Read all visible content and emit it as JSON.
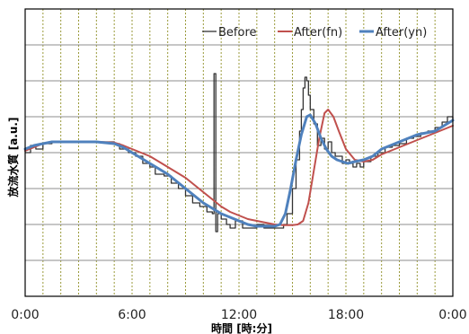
{
  "chart_data": {
    "type": "line",
    "title": "",
    "xlabel": "時間 [時:分]",
    "ylabel": "放流水質 [a.u.]",
    "x_tick_labels": [
      "0:00",
      "6:00",
      "12:00",
      "18:00",
      "0:00"
    ],
    "xlim": [
      0,
      24
    ],
    "ylim": [
      0,
      8
    ],
    "x_minor_grid_step_hours": 1,
    "y_grid_step": 1,
    "grid": true,
    "legend_position": "top-right",
    "series": [
      {
        "name": "Before",
        "color": "#333333",
        "width": 1.3,
        "step": true,
        "x": [
          0,
          0.3,
          0.6,
          1.0,
          1.5,
          2.0,
          3.0,
          4.0,
          4.5,
          5.0,
          5.3,
          5.8,
          6.2,
          6.6,
          7.0,
          7.3,
          7.8,
          8.2,
          8.6,
          9.0,
          9.4,
          9.8,
          10.2,
          10.5,
          10.6,
          10.7,
          10.8,
          11.0,
          11.3,
          11.5,
          11.8,
          12.2,
          12.6,
          13.0,
          13.4,
          13.8,
          14.2,
          14.5,
          14.7,
          15.0,
          15.2,
          15.4,
          15.5,
          15.6,
          15.7,
          15.8,
          15.9,
          16.0,
          16.2,
          16.4,
          16.6,
          16.8,
          17.0,
          17.2,
          17.4,
          17.6,
          17.8,
          18.0,
          18.2,
          18.4,
          18.6,
          18.8,
          19.0,
          19.4,
          19.8,
          20.2,
          20.6,
          21.0,
          21.4,
          21.8,
          22.2,
          22.6,
          23.0,
          23.4,
          23.7,
          24.0
        ],
        "y": [
          4.0,
          4.2,
          4.1,
          4.25,
          4.3,
          4.3,
          4.3,
          4.3,
          4.3,
          4.25,
          4.1,
          4.0,
          3.9,
          3.7,
          3.6,
          3.4,
          3.35,
          3.15,
          3.0,
          2.8,
          2.6,
          2.5,
          2.35,
          2.3,
          6.2,
          1.8,
          2.3,
          2.15,
          2.0,
          1.9,
          2.1,
          1.9,
          1.9,
          2.0,
          1.9,
          1.9,
          1.9,
          2.0,
          2.3,
          3.0,
          3.8,
          4.6,
          5.2,
          5.8,
          6.1,
          6.0,
          5.6,
          5.2,
          4.8,
          4.2,
          4.4,
          4.1,
          4.3,
          4.0,
          3.9,
          3.9,
          3.7,
          3.8,
          3.7,
          3.6,
          3.7,
          3.6,
          3.75,
          3.9,
          4.0,
          4.15,
          4.2,
          4.25,
          4.4,
          4.45,
          4.55,
          4.6,
          4.7,
          4.85,
          5.0,
          4.9
        ]
      },
      {
        "name": "After(fn)",
        "color": "#c0504d",
        "width": 2,
        "x": [
          0,
          0.5,
          1.0,
          1.5,
          2.0,
          3.0,
          4.0,
          5.0,
          5.5,
          6.0,
          6.5,
          7.0,
          7.5,
          8.0,
          8.5,
          9.0,
          9.5,
          10.0,
          10.5,
          11.0,
          11.5,
          12.0,
          12.5,
          13.0,
          13.5,
          14.0,
          14.5,
          15.0,
          15.3,
          15.6,
          15.9,
          16.2,
          16.5,
          16.8,
          17.0,
          17.3,
          17.6,
          18.0,
          18.5,
          19.0,
          19.5,
          20.0,
          20.5,
          21.0,
          21.5,
          22.0,
          22.5,
          23.0,
          23.5,
          24.0
        ],
        "y": [
          4.05,
          4.15,
          4.25,
          4.3,
          4.3,
          4.3,
          4.3,
          4.28,
          4.2,
          4.1,
          4.0,
          3.9,
          3.75,
          3.6,
          3.45,
          3.3,
          3.1,
          2.9,
          2.7,
          2.5,
          2.35,
          2.25,
          2.15,
          2.1,
          2.05,
          2.0,
          1.98,
          1.98,
          2.0,
          2.1,
          2.6,
          3.5,
          4.4,
          5.1,
          5.2,
          5.0,
          4.6,
          4.1,
          3.8,
          3.75,
          3.8,
          3.95,
          4.05,
          4.15,
          4.25,
          4.35,
          4.45,
          4.55,
          4.65,
          4.75
        ]
      },
      {
        "name": "After(yn)",
        "color": "#4f81bd",
        "width": 3,
        "x": [
          0,
          0.5,
          1.0,
          1.5,
          2.0,
          3.0,
          4.0,
          5.0,
          5.5,
          6.0,
          6.5,
          7.0,
          7.5,
          8.0,
          8.5,
          9.0,
          9.5,
          10.0,
          10.5,
          11.0,
          11.5,
          12.0,
          12.5,
          13.0,
          13.5,
          14.0,
          14.3,
          14.6,
          14.9,
          15.2,
          15.5,
          15.8,
          16.0,
          16.3,
          16.6,
          16.9,
          17.2,
          17.5,
          17.8,
          18.1,
          18.5,
          19.0,
          19.5,
          20.0,
          20.5,
          21.0,
          21.5,
          22.0,
          22.5,
          23.0,
          23.5,
          24.0
        ],
        "y": [
          4.1,
          4.2,
          4.25,
          4.3,
          4.3,
          4.3,
          4.3,
          4.25,
          4.15,
          4.0,
          3.85,
          3.7,
          3.55,
          3.4,
          3.2,
          3.0,
          2.8,
          2.6,
          2.45,
          2.3,
          2.2,
          2.1,
          2.0,
          1.95,
          1.95,
          1.95,
          2.0,
          2.3,
          3.0,
          3.8,
          4.5,
          5.0,
          5.05,
          4.8,
          4.4,
          4.1,
          3.9,
          3.8,
          3.75,
          3.7,
          3.75,
          3.8,
          3.9,
          4.1,
          4.2,
          4.3,
          4.4,
          4.5,
          4.55,
          4.6,
          4.75,
          4.9
        ]
      }
    ]
  }
}
